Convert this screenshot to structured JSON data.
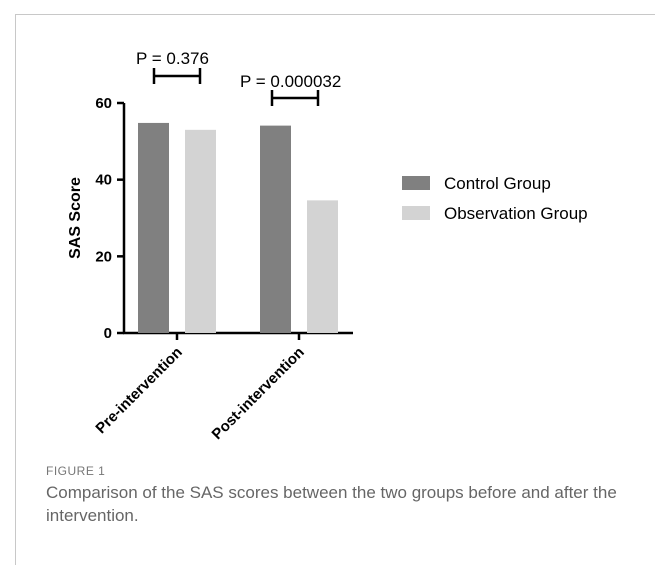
{
  "figure": {
    "label": "FIGURE 1",
    "caption": "Comparison of the SAS scores between the two groups before and after the intervention."
  },
  "chart_data": {
    "type": "bar",
    "categories": [
      "Pre-intervention",
      "Post-intervention"
    ],
    "series": [
      {
        "name": "Control Group",
        "values": [
          54.8,
          54.1
        ],
        "color": "#808080"
      },
      {
        "name": "Observation Group",
        "values": [
          53.0,
          34.6
        ],
        "color": "#d3d3d3"
      }
    ],
    "ylabel": "SAS Score",
    "xlabel": "",
    "ylim": [
      0,
      60
    ],
    "yticks": [
      0,
      20,
      40,
      60
    ],
    "grid": false,
    "legend_position": "right",
    "annotations": [
      {
        "text": "P = 0.376",
        "category": "Pre-intervention"
      },
      {
        "text": "P = 0.000032",
        "category": "Post-intervention"
      }
    ]
  }
}
